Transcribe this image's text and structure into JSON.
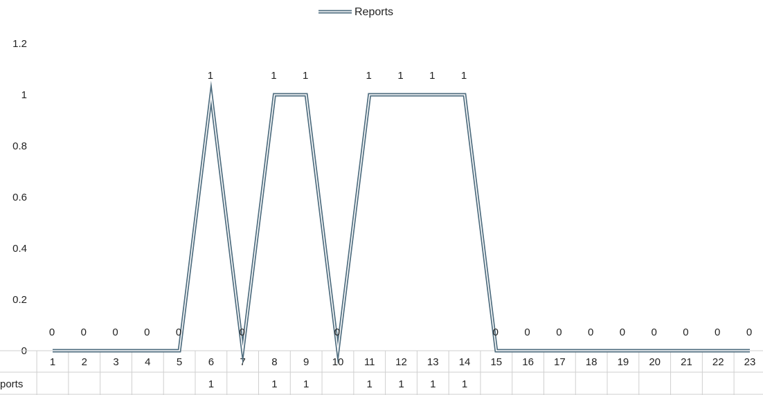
{
  "chart_data": {
    "type": "line",
    "legend": {
      "label": "Reports",
      "position": "top",
      "color": "#4f6d7f"
    },
    "categories": [
      "1",
      "2",
      "3",
      "4",
      "5",
      "6",
      "7",
      "8",
      "9",
      "10",
      "11",
      "12",
      "13",
      "14",
      "15",
      "16",
      "17",
      "18",
      "19",
      "20",
      "21",
      "22",
      "23"
    ],
    "series": [
      {
        "name": "Reports",
        "values": [
          0,
          0,
          0,
          0,
          0,
          1,
          0,
          1,
          1,
          0,
          1,
          1,
          1,
          1,
          0,
          0,
          0,
          0,
          0,
          0,
          0,
          0,
          0
        ]
      }
    ],
    "data_labels": [
      "0",
      "0",
      "0",
      "0",
      "0",
      "1",
      "0",
      "1",
      "1",
      "0",
      "1",
      "1",
      "1",
      "1",
      "0",
      "0",
      "0",
      "0",
      "0",
      "0",
      "0",
      "0",
      "0"
    ],
    "y_ticks": [
      "0",
      "0.2",
      "0.4",
      "0.6",
      "0.8",
      "1",
      "1.2"
    ],
    "ylim": [
      0,
      1.2
    ],
    "data_table": {
      "row_header": "Reports",
      "visible_row_header": "ports",
      "cells": [
        "",
        "",
        "",
        "",
        "",
        "1",
        "",
        "1",
        "1",
        "",
        "1",
        "1",
        "1",
        "1",
        "",
        "",
        "",
        "",
        "",
        "",
        "",
        "",
        ""
      ]
    },
    "grid": false
  }
}
